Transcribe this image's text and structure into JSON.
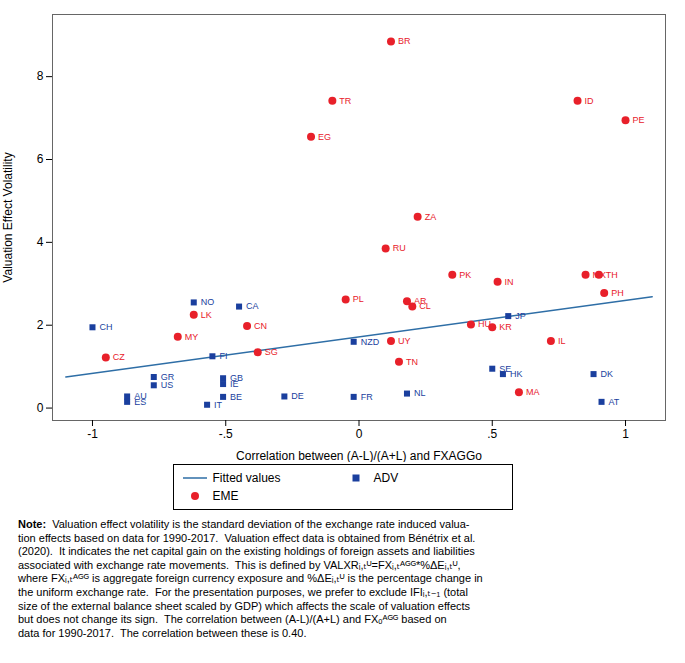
{
  "chart_data": {
    "type": "scatter",
    "xlabel": "Correlation between (A-L)/(A+L) and FXAGGo",
    "ylabel": "Valuation Effect Volatility",
    "xlim": [
      -1.15,
      1.15
    ],
    "ylim": [
      -0.3,
      9.5
    ],
    "xticks": [
      -1,
      {
        "value": -0.5,
        "label": "-.5"
      },
      0,
      {
        "value": 0.5,
        "label": ".5"
      },
      1
    ],
    "yticks": [
      0,
      2,
      4,
      6,
      8
    ],
    "grid": false,
    "series": [
      {
        "name": "Fitted values",
        "type": "line",
        "color": "#2e6ea6",
        "x": [
          -1.1,
          1.1
        ],
        "values": [
          0.752,
          2.688
        ]
      },
      {
        "name": "ADV",
        "type": "scatter",
        "marker": "square",
        "color": "#1a3f9e",
        "labels": [
          "CH",
          "NO",
          "CA",
          "FI",
          "GB",
          "IE",
          "BE",
          "IT",
          "GR",
          "US",
          "AU",
          "ES",
          "DE",
          "FR",
          "NL",
          "NZD",
          "JP",
          "SE",
          "HK",
          "DK",
          "AT"
        ],
        "x": [
          -1.0,
          -0.62,
          -0.45,
          -0.55,
          -0.51,
          -0.51,
          -0.51,
          -0.57,
          -0.77,
          -0.77,
          -0.87,
          -0.87,
          -0.28,
          -0.02,
          0.18,
          -0.02,
          0.56,
          0.5,
          0.54,
          0.88,
          0.91
        ],
        "values": [
          1.95,
          2.55,
          2.45,
          1.25,
          0.72,
          0.58,
          0.27,
          0.08,
          0.75,
          0.55,
          0.28,
          0.15,
          0.28,
          0.27,
          0.35,
          1.6,
          2.22,
          0.95,
          0.82,
          0.82,
          0.15
        ]
      },
      {
        "name": "EME",
        "type": "scatter",
        "marker": "circle",
        "color": "#e8202a",
        "labels": [
          "CZ",
          "MY",
          "LK",
          "EG",
          "TR",
          "BR",
          "PL",
          "RU",
          "AR",
          "CL",
          "UY",
          "TN",
          "ZA",
          "PK",
          "IN",
          "HU",
          "KR",
          "MA",
          "SG",
          "CN",
          "IL",
          "ID",
          "MX",
          "TH",
          "PH",
          "PE"
        ],
        "x": [
          -0.95,
          -0.68,
          -0.62,
          -0.18,
          -0.1,
          0.12,
          -0.05,
          0.1,
          0.18,
          0.2,
          0.12,
          0.15,
          0.22,
          0.35,
          0.52,
          0.42,
          0.5,
          0.6,
          -0.38,
          -0.42,
          0.72,
          0.82,
          0.85,
          0.9,
          0.92,
          1.0
        ],
        "values": [
          1.22,
          1.72,
          2.25,
          6.55,
          7.42,
          8.85,
          2.62,
          3.85,
          2.58,
          2.45,
          1.62,
          1.12,
          4.62,
          3.22,
          3.05,
          2.02,
          1.95,
          0.38,
          1.35,
          1.98,
          1.62,
          7.42,
          3.22,
          3.22,
          2.78,
          6.95
        ]
      }
    ],
    "note_label": "Note:",
    "note": [
      "  Valuation effect volatility is the standard deviation of the exchange rate induced valua-",
      "tion effects based on data for 1990-2017.  Valuation effect data is obtained from Bénétrix et al.",
      "(2020).  It indicates the net capital gain on the existing holdings of foreign assets and liabilities",
      "associated with exchange rate movements.  This is defined by VALXRᵢ,ₜᵁ=FXᵢ,ₜᴬᴳᴳ*%ΔEᵢ,ₜᵁ,",
      "where FXᵢ,ₜᴬᴳᴳ is aggregate foreign currency exposure and %ΔEᵢ,ₜᵁ is the percentage change in",
      "the uniform exchange rate.  For the presentation purposes, we prefer to exclude IFIᵢ,ₜ₋₁ (total",
      "size of the external balance sheet scaled by GDP) which affects the scale of valuation effects",
      "but does not change its sign.  The correlation between (A-L)/(A+L) and FXₒᴬᴳᴳ based on",
      "data for 1990-2017.  The correlation between these is 0.40."
    ]
  }
}
